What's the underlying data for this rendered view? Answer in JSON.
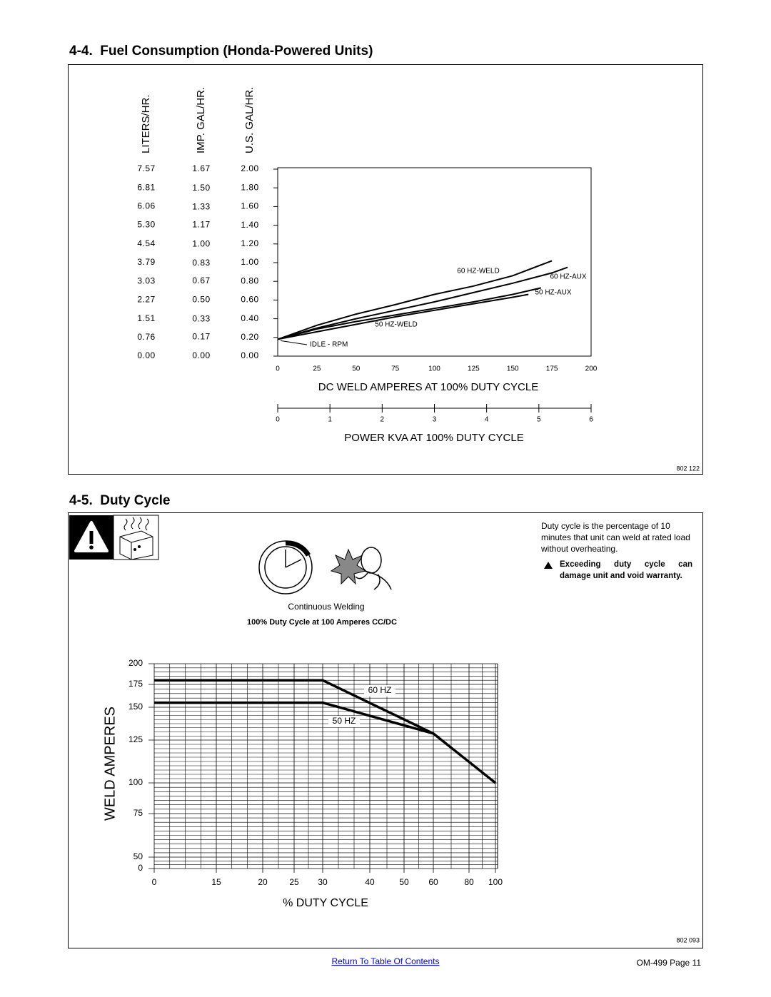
{
  "sections": [
    {
      "heading": "4-4.  Fuel Consumption (Honda-Powered Units)",
      "figure_id": "802 122"
    },
    {
      "heading": "4-5.  Duty Cycle",
      "figure_id": "802 093",
      "description": "Duty cycle is the percentage of 10 minutes that unit can weld at rated load without overheating.",
      "warning": "Exceeding duty cycle can damage unit and void warranty.",
      "illustration_caption": "Continuous Welding",
      "illustration_subcaption": "100% Duty Cycle at 100 Amperes CC/DC"
    }
  ],
  "chart_data": [
    {
      "type": "line",
      "xlabel": "DC WELD AMPERES AT 100% DUTY CYCLE",
      "x2label": "POWER KVA AT 100% DUTY CYCLE",
      "ylabel": "U.S. GAL/HR.",
      "y2label": "LITERS/HR.",
      "y3label": "IMP. GAL/HR.",
      "xlim": [
        0,
        200
      ],
      "xticks": [
        0,
        25,
        50,
        75,
        100,
        125,
        150,
        175,
        200
      ],
      "x2lim": [
        0,
        6
      ],
      "x2ticks": [
        0,
        1,
        2,
        3,
        4,
        5,
        6
      ],
      "ylim": [
        0,
        2
      ],
      "yticks": [
        {
          "value": 0,
          "label": "0.00"
        },
        {
          "value": 0.2,
          "label": "0.20"
        },
        {
          "value": 0.4,
          "label": "0.40"
        },
        {
          "value": 0.6,
          "label": "0.60"
        },
        {
          "value": 0.8,
          "label": "0.80"
        },
        {
          "value": 1,
          "label": "1.00"
        },
        {
          "value": 1.2,
          "label": "1.20"
        },
        {
          "value": 1.4,
          "label": "1.40"
        },
        {
          "value": 1.6,
          "label": "1.60"
        },
        {
          "value": 1.8,
          "label": "1.80"
        },
        {
          "value": 2,
          "label": "2.00"
        }
      ],
      "y2lim": [
        0,
        7.57
      ],
      "y2ticks": [
        {
          "value": 0,
          "label": "0.00"
        },
        0.76,
        1.51,
        2.27,
        3.03,
        3.79,
        4.54,
        {
          "value": 5.3,
          "label": "5.30"
        },
        6.06,
        6.81,
        7.57
      ],
      "y3lim": [
        0,
        1.67
      ],
      "y3ticks": [
        {
          "value": 0,
          "label": "0.00"
        },
        0.17,
        0.33,
        {
          "value": 0.5,
          "label": "0.50"
        },
        0.67,
        0.83,
        {
          "value": 1,
          "label": "1.00"
        },
        1.17,
        1.33,
        {
          "value": 1.5,
          "label": "1.50"
        },
        1.67
      ],
      "series": [
        {
          "name": "60 HZ-WELD",
          "color": "#000000",
          "x": [
            0,
            25,
            50,
            75,
            100,
            125,
            150,
            175
          ],
          "values": [
            0.18,
            0.33,
            0.45,
            0.55,
            0.66,
            0.75,
            0.86,
            1.02
          ]
        },
        {
          "name": "60 HZ-AUX",
          "color": "#000000",
          "x": [
            0,
            25,
            50,
            75,
            100,
            125,
            150,
            175,
            185
          ],
          "values": [
            0.18,
            0.3,
            0.4,
            0.49,
            0.58,
            0.68,
            0.78,
            0.89,
            0.95
          ]
        },
        {
          "name": "50 HZ-AUX",
          "color": "#000000",
          "x": [
            0,
            25,
            50,
            75,
            100,
            125,
            150,
            168
          ],
          "values": [
            0.18,
            0.29,
            0.37,
            0.44,
            0.51,
            0.58,
            0.66,
            0.73
          ]
        },
        {
          "name": "50 HZ-WELD",
          "color": "#000000",
          "x": [
            0,
            25,
            50,
            75,
            100,
            125,
            150,
            160
          ],
          "values": [
            0.18,
            0.26,
            0.34,
            0.42,
            0.49,
            0.56,
            0.63,
            0.66
          ]
        }
      ],
      "annotations": [
        {
          "text": "IDLE - RPM",
          "x": 0,
          "y": 0.18
        }
      ]
    },
    {
      "type": "line",
      "xlabel": "% DUTY CYCLE",
      "ylabel": "WELD AMPERES",
      "xlim": [
        0,
        100
      ],
      "xticks": [
        0,
        15,
        20,
        25,
        30,
        40,
        50,
        60,
        80,
        100
      ],
      "ylim": [
        0,
        200
      ],
      "yticks": [
        0,
        50,
        75,
        100,
        125,
        150,
        175,
        200
      ],
      "grid": true,
      "series": [
        {
          "name": "60 HZ",
          "color": "#000000",
          "x": [
            0,
            30,
            60,
            100
          ],
          "values": [
            180,
            180,
            130,
            100
          ]
        },
        {
          "name": "50 HZ",
          "color": "#000000",
          "x": [
            0,
            30,
            60
          ],
          "values": [
            155,
            155,
            130
          ]
        }
      ]
    }
  ],
  "footer": {
    "link": "Return To Table Of Contents",
    "page": "OM-499 Page 11"
  }
}
